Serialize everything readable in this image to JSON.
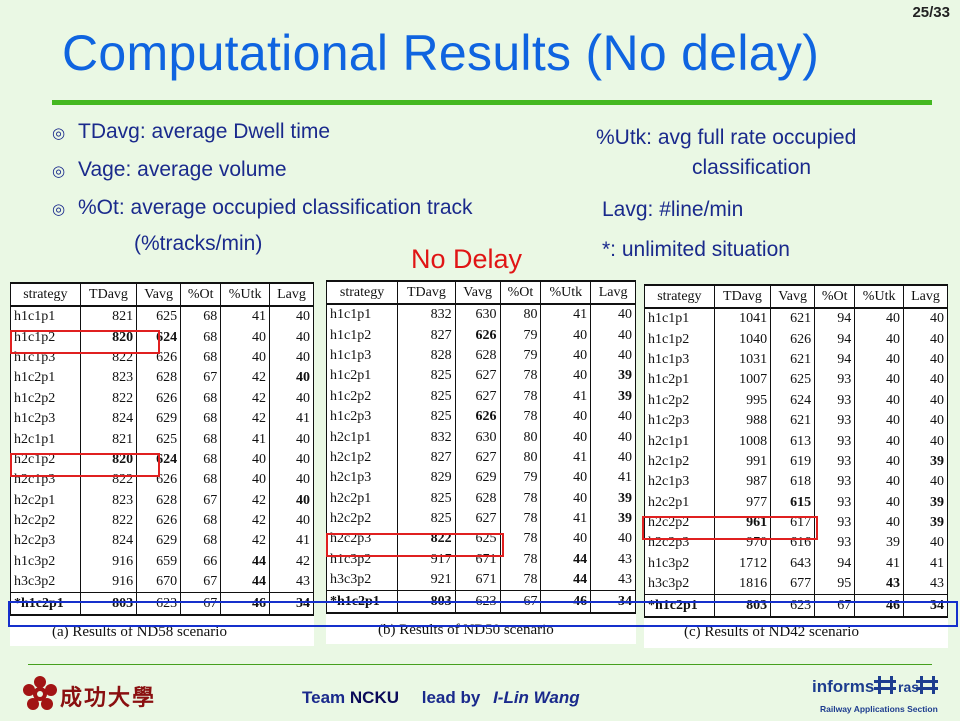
{
  "page_number": "25/33",
  "title": "Computational Results (No delay)",
  "colors": {
    "title": "#0f64e0",
    "rule": "#44b820",
    "text": "#1a2a8c",
    "accent": "#e01515",
    "highlight_blue": "#1530cc"
  },
  "bullets": [
    "TDavg: average Dwell time",
    "Vage: average volume",
    "%Ot: average occupied classification track"
  ],
  "bullet_icon": "target-bullet-icon",
  "bullet_sub": "(%tracks/min)",
  "right_notes": {
    "utk_line1": "%Utk: avg full rate occupied",
    "utk_line2": "classification",
    "lavg": "Lavg: #line/min",
    "star": "*: unlimited situation"
  },
  "no_delay_label": "No Delay",
  "tables": [
    {
      "caption": "(a)   Results of ND58 scenario",
      "headers": [
        "strategy",
        "TDavg",
        "Vavg",
        "%Ot",
        "%Utk",
        "Lavg"
      ],
      "rows": [
        [
          "h1c1p1",
          "821",
          "625",
          "68",
          "41",
          "40"
        ],
        [
          "h1c1p2",
          "820",
          "624",
          "68",
          "40",
          "40"
        ],
        [
          "h1c1p3",
          "822",
          "626",
          "68",
          "40",
          "40"
        ],
        [
          "h1c2p1",
          "823",
          "628",
          "67",
          "42",
          "40"
        ],
        [
          "h1c2p2",
          "822",
          "626",
          "68",
          "42",
          "40"
        ],
        [
          "h1c2p3",
          "824",
          "629",
          "68",
          "42",
          "41"
        ],
        [
          "h2c1p1",
          "821",
          "625",
          "68",
          "41",
          "40"
        ],
        [
          "h2c1p2",
          "820",
          "624",
          "68",
          "40",
          "40"
        ],
        [
          "h2c1p3",
          "822",
          "626",
          "68",
          "40",
          "40"
        ],
        [
          "h2c2p1",
          "823",
          "628",
          "67",
          "42",
          "40"
        ],
        [
          "h2c2p2",
          "822",
          "626",
          "68",
          "42",
          "40"
        ],
        [
          "h2c2p3",
          "824",
          "629",
          "68",
          "42",
          "41"
        ],
        [
          "h1c3p2",
          "916",
          "659",
          "66",
          "44",
          "42"
        ],
        [
          "h3c3p2",
          "916",
          "670",
          "67",
          "44",
          "43"
        ],
        [
          "*h1c2p1",
          "803",
          "623",
          "67",
          "46",
          "34"
        ]
      ]
    },
    {
      "caption": "(b)   Results of ND50 scenario",
      "headers": [
        "strategy",
        "TDavg",
        "Vavg",
        "%Ot",
        "%Utk",
        "Lavg"
      ],
      "rows": [
        [
          "h1c1p1",
          "832",
          "630",
          "80",
          "41",
          "40"
        ],
        [
          "h1c1p2",
          "827",
          "626",
          "79",
          "40",
          "40"
        ],
        [
          "h1c1p3",
          "828",
          "628",
          "79",
          "40",
          "40"
        ],
        [
          "h1c2p1",
          "825",
          "627",
          "78",
          "40",
          "39"
        ],
        [
          "h1c2p2",
          "825",
          "627",
          "78",
          "41",
          "39"
        ],
        [
          "h1c2p3",
          "825",
          "626",
          "78",
          "40",
          "40"
        ],
        [
          "h2c1p1",
          "832",
          "630",
          "80",
          "40",
          "40"
        ],
        [
          "h2c1p2",
          "827",
          "627",
          "80",
          "41",
          "40"
        ],
        [
          "h2c1p3",
          "829",
          "629",
          "79",
          "40",
          "41"
        ],
        [
          "h2c2p1",
          "825",
          "628",
          "78",
          "40",
          "39"
        ],
        [
          "h2c2p2",
          "825",
          "627",
          "78",
          "41",
          "39"
        ],
        [
          "h2c2p3",
          "822",
          "625",
          "78",
          "40",
          "40"
        ],
        [
          "h1c3p2",
          "917",
          "671",
          "78",
          "44",
          "43"
        ],
        [
          "h3c3p2",
          "921",
          "671",
          "78",
          "44",
          "43"
        ],
        [
          "*h1c2p1",
          "803",
          "623",
          "67",
          "46",
          "34"
        ]
      ]
    },
    {
      "caption": "(c)   Results of ND42 scenario",
      "headers": [
        "strategy",
        "TDavg",
        "Vavg",
        "%Ot",
        "%Utk",
        "Lavg"
      ],
      "rows": [
        [
          "h1c1p1",
          "1041",
          "621",
          "94",
          "40",
          "40"
        ],
        [
          "h1c1p2",
          "1040",
          "626",
          "94",
          "40",
          "40"
        ],
        [
          "h1c1p3",
          "1031",
          "621",
          "94",
          "40",
          "40"
        ],
        [
          "h1c2p1",
          "1007",
          "625",
          "93",
          "40",
          "40"
        ],
        [
          "h1c2p2",
          "995",
          "624",
          "93",
          "40",
          "40"
        ],
        [
          "h1c2p3",
          "988",
          "621",
          "93",
          "40",
          "40"
        ],
        [
          "h2c1p1",
          "1008",
          "613",
          "93",
          "40",
          "40"
        ],
        [
          "h2c1p2",
          "991",
          "619",
          "93",
          "40",
          "39"
        ],
        [
          "h2c1p3",
          "987",
          "618",
          "93",
          "40",
          "40"
        ],
        [
          "h2c2p1",
          "977",
          "615",
          "93",
          "40",
          "39"
        ],
        [
          "h2c2p2",
          "961",
          "617",
          "93",
          "40",
          "39"
        ],
        [
          "h2c2p3",
          "970",
          "616",
          "93",
          "39",
          "40"
        ],
        [
          "h1c3p2",
          "1712",
          "643",
          "94",
          "41",
          "41"
        ],
        [
          "h3c3p2",
          "1816",
          "677",
          "95",
          "43",
          "43"
        ],
        [
          "*h1c2p1",
          "803",
          "623",
          "67",
          "46",
          "34"
        ]
      ]
    }
  ],
  "footer": {
    "team_prefix": "Team",
    "team_name": "NCKU",
    "lead_by": "lead by",
    "person": "I-Lin Wang",
    "university_logo_text": "成功大學",
    "informs_logo_text": "informs",
    "informs_sub": "Railway Applications Section",
    "informs_ras": "ras"
  }
}
